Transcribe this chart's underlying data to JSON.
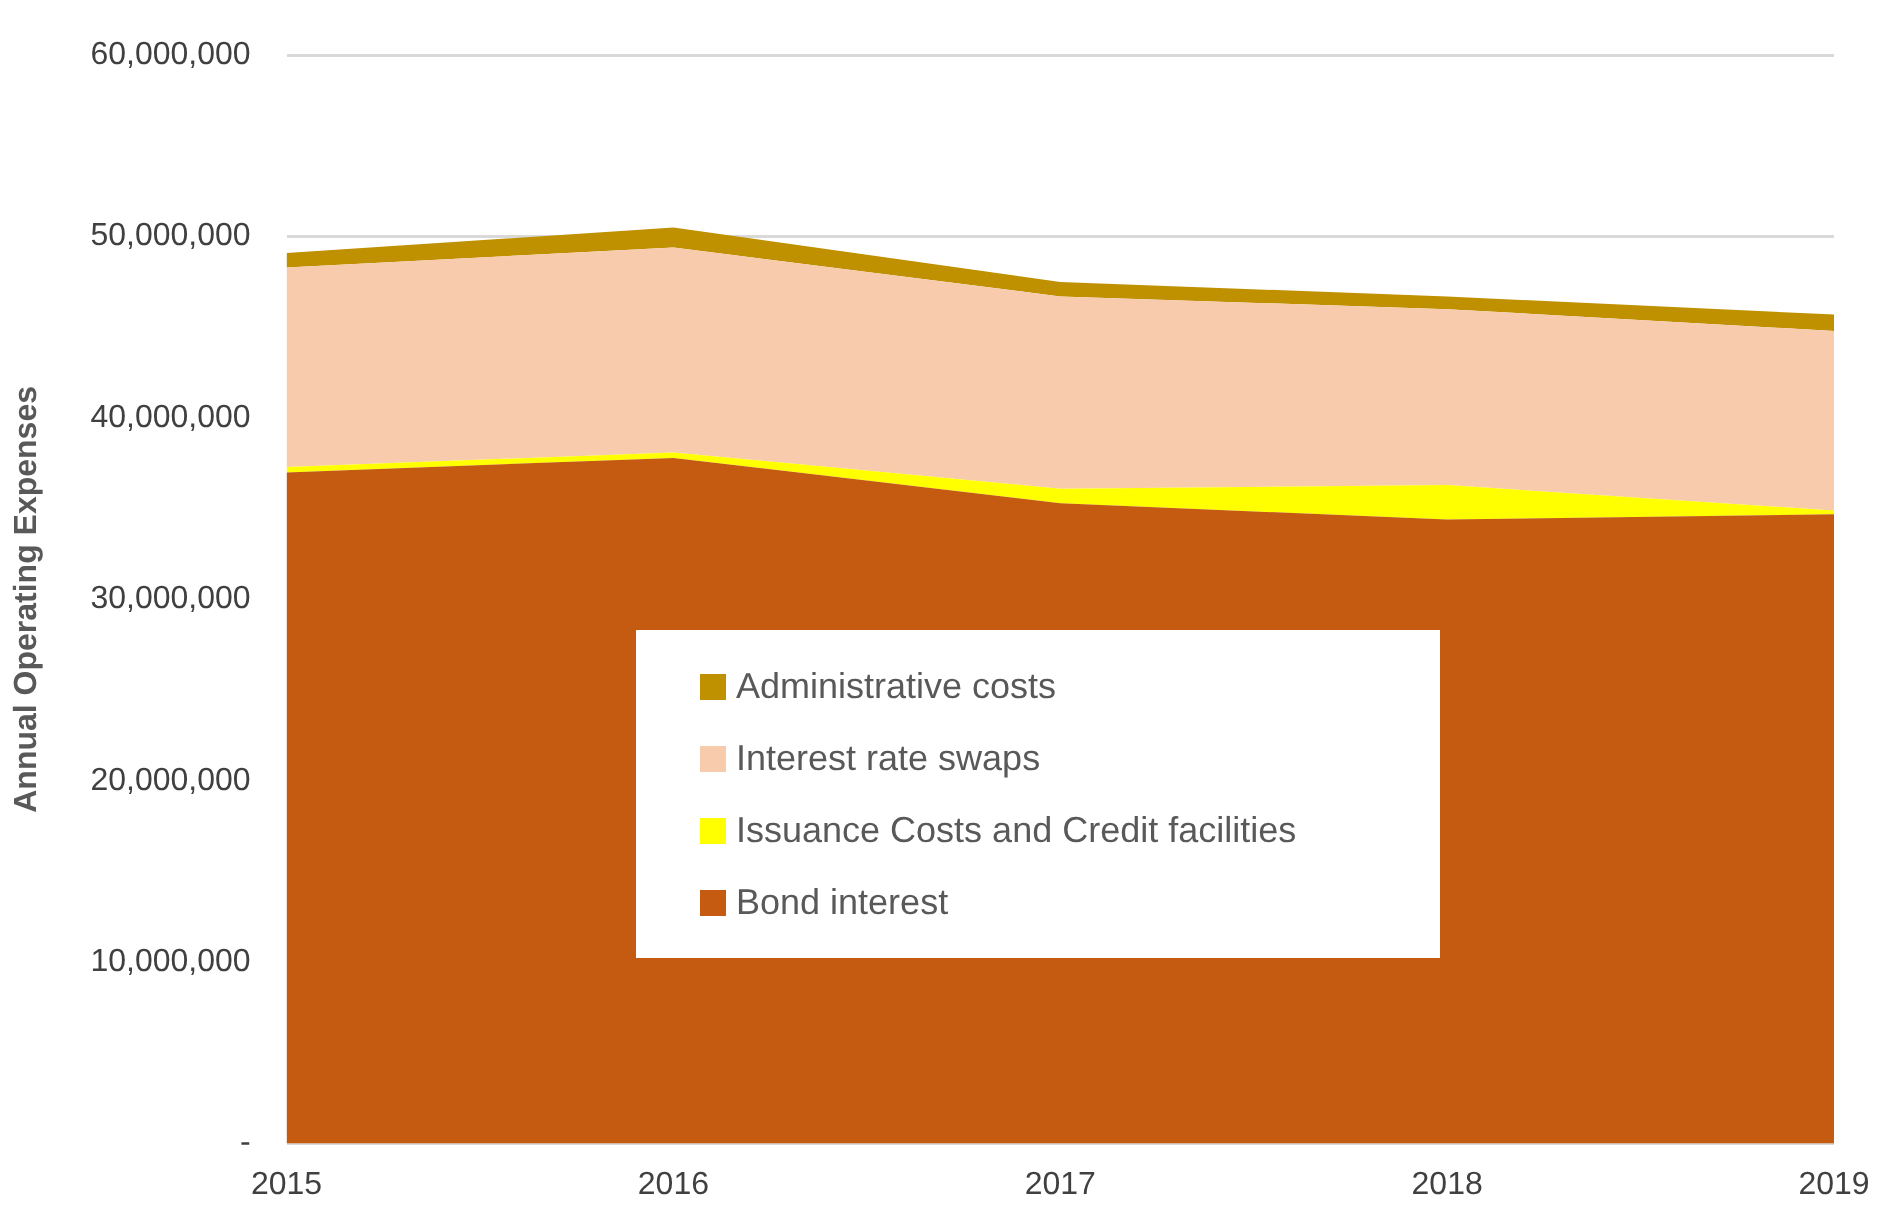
{
  "chart_data": {
    "type": "area",
    "stacked": true,
    "ylabel": "Annual Operating Expenses",
    "categories": [
      "2015",
      "2016",
      "2017",
      "2018",
      "2019"
    ],
    "series": [
      {
        "name": "Bond interest",
        "color": "#c55a11",
        "values": [
          37000000.0,
          37800000.0,
          35300000.0,
          34400000.0,
          34700000.0
        ]
      },
      {
        "name": "Issuance Costs and Credit facilities",
        "color": "#ffff00",
        "values": [
          300000.0,
          300000.0,
          800000.0,
          1900000.0,
          200000.0
        ]
      },
      {
        "name": "Interest rate swaps",
        "color": "#f8cbad",
        "values": [
          11000000.0,
          11300000.0,
          10600000.0,
          9700000.0,
          9900000.0
        ]
      },
      {
        "name": "Administrative costs",
        "color": "#bf9000",
        "values": [
          800000.0,
          1100000.0,
          800000.0,
          700000.0,
          900000.0
        ]
      }
    ],
    "ylim": [
      0,
      60000000
    ],
    "yticks": [
      {
        "value": 0,
        "label": "-"
      },
      {
        "value": 10000000,
        "label": "10,000,000"
      },
      {
        "value": 20000000,
        "label": "20,000,000"
      },
      {
        "value": 30000000,
        "label": "30,000,000"
      },
      {
        "value": 40000000,
        "label": "40,000,000"
      },
      {
        "value": 50000000,
        "label": "50,000,000"
      },
      {
        "value": 60000000,
        "label": "60,000,000"
      }
    ],
    "grid": "y",
    "legend": "center"
  }
}
